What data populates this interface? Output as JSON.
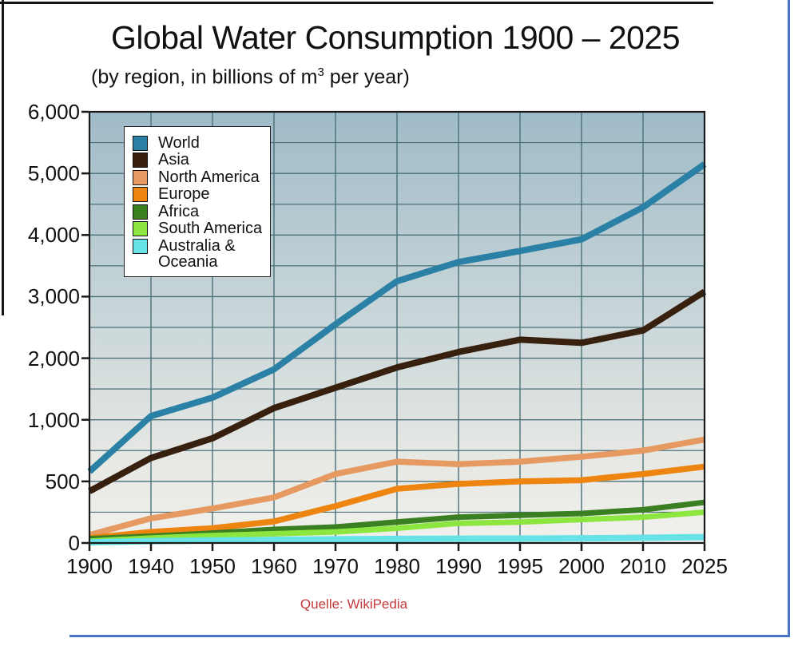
{
  "title": "Global Water Consumption 1900 – 2025",
  "subtitle_prefix": "(by region, in billions of m",
  "subtitle_sup": "3",
  "subtitle_suffix": " per year)",
  "source": "Quelle: WikiPedia",
  "colors": {
    "text": "#111111",
    "source_text": "#c43a3c",
    "border_black": "#151515",
    "border_blue": "#4a72c7",
    "grid": "#4a7078",
    "frame": "#1a1a1a",
    "plot_bg_top": "#9fbbc8",
    "plot_bg_mid": "#e6e8e4",
    "plot_bg_bottom": "#f1f0ec",
    "legend_bg": "#ffffff"
  },
  "chart_data": {
    "type": "line",
    "title": "Global Water Consumption 1900 – 2025",
    "subtitle": "(by region, in billions of m3 per year)",
    "xlabel": "",
    "ylabel": "",
    "grid": true,
    "legend_position": "top-left",
    "x_categories": [
      "1900",
      "1940",
      "1950",
      "1960",
      "1970",
      "1980",
      "1990",
      "1995",
      "2000",
      "2010",
      "2025"
    ],
    "y_tick_values": [
      0,
      500,
      1000,
      2000,
      3000,
      4000,
      5000,
      6000
    ],
    "y_tick_labels": [
      "0",
      "500",
      "1,000",
      "2,000",
      "3,000",
      "4,000",
      "5,000",
      "6,000"
    ],
    "axis_note": "both axes have unequal intervals drawn equally spaced",
    "series": [
      {
        "name": "World",
        "color": "#2b80a5",
        "width": 8,
        "values": [
          580,
          1060,
          1360,
          1820,
          2550,
          3250,
          3560,
          3740,
          3930,
          4450,
          5150
        ]
      },
      {
        "name": "Asia",
        "color": "#38200f",
        "width": 8,
        "values": [
          420,
          690,
          850,
          1190,
          1520,
          1850,
          2100,
          2300,
          2250,
          2450,
          3080
        ]
      },
      {
        "name": "North America",
        "color": "#e69a62",
        "width": 7.5,
        "values": [
          65,
          200,
          280,
          370,
          560,
          660,
          640,
          660,
          700,
          750,
          840
        ]
      },
      {
        "name": "Europe",
        "color": "#ee8511",
        "width": 7.5,
        "values": [
          40,
          90,
          120,
          175,
          300,
          440,
          480,
          500,
          510,
          560,
          620
        ]
      },
      {
        "name": "Africa",
        "color": "#3a7f22",
        "width": 7,
        "values": [
          35,
          55,
          80,
          110,
          130,
          170,
          210,
          225,
          240,
          270,
          330
        ]
      },
      {
        "name": "South America",
        "color": "#8ce63f",
        "width": 7,
        "values": [
          15,
          40,
          60,
          75,
          90,
          120,
          160,
          170,
          190,
          210,
          250
        ]
      },
      {
        "name": "Australia & Oceania",
        "color": "#67e3e7",
        "width": 8,
        "values": [
          5,
          15,
          20,
          25,
          30,
          33,
          35,
          36,
          38,
          42,
          48
        ]
      }
    ]
  }
}
